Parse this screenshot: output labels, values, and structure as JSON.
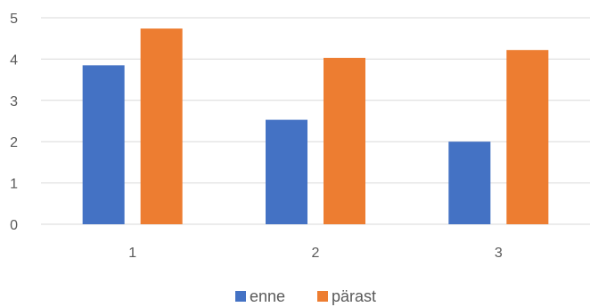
{
  "chart_data": {
    "type": "bar",
    "categories": [
      "1",
      "2",
      "3"
    ],
    "series": [
      {
        "name": "enne",
        "values": [
          3.85,
          2.53,
          2.0
        ],
        "color": "#4472C4"
      },
      {
        "name": "pärast",
        "values": [
          4.74,
          4.03,
          4.22
        ],
        "color": "#ED7D31"
      }
    ],
    "title": "",
    "xlabel": "",
    "ylabel": "",
    "ylim": [
      0,
      5
    ],
    "yticks": [
      "0",
      "1",
      "2",
      "3",
      "4",
      "5"
    ],
    "grid": true,
    "legend": "bottom-center"
  }
}
